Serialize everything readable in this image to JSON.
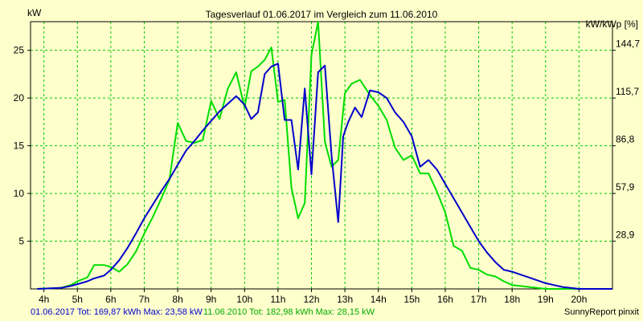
{
  "chart_data": {
    "type": "line",
    "title": "Tagesverlauf 01.06.2017 im Vergleich zum 11.06.2010",
    "ylabel_left": "kW",
    "ylabel_right": "kW/kWp [%]",
    "xlim": [
      3.6,
      21.0
    ],
    "ylim": [
      0,
      28
    ],
    "x_ticks": [
      4,
      5,
      6,
      7,
      8,
      9,
      10,
      11,
      12,
      13,
      14,
      15,
      16,
      17,
      18,
      19,
      20
    ],
    "x_tick_labels": [
      "4h",
      "5h",
      "6h",
      "7h",
      "8h",
      "9h",
      "10h",
      "11h",
      "12h",
      "13h",
      "14h",
      "15h",
      "16h",
      "17h",
      "18h",
      "19h",
      "20h"
    ],
    "y_ticks_left": [
      5,
      10,
      15,
      20,
      25
    ],
    "y_tick_labels_left": [
      "5",
      "10",
      "15",
      "20",
      "25"
    ],
    "y_ticks_right": [
      5,
      10,
      15,
      20,
      25
    ],
    "y_tick_labels_right": [
      "28,9",
      "57,9",
      "86,8",
      "115,7",
      "144,7"
    ],
    "grid": true,
    "series": [
      {
        "name": "01.06.2017",
        "color": "#0000cc",
        "x": [
          3.8,
          4.5,
          4.8,
          5.0,
          5.3,
          5.5,
          5.8,
          6.0,
          6.25,
          6.5,
          6.75,
          7.0,
          7.25,
          7.5,
          7.75,
          8.0,
          8.25,
          8.5,
          8.75,
          9.0,
          9.25,
          9.5,
          9.75,
          10.0,
          10.2,
          10.4,
          10.6,
          10.8,
          11.0,
          11.2,
          11.4,
          11.6,
          11.8,
          12.0,
          12.2,
          12.4,
          12.6,
          12.8,
          12.95,
          13.1,
          13.3,
          13.5,
          13.75,
          14.0,
          14.25,
          14.5,
          14.75,
          15.0,
          15.25,
          15.5,
          15.75,
          16.0,
          16.25,
          16.5,
          16.75,
          17.0,
          17.25,
          17.5,
          17.75,
          18.0,
          18.25,
          18.5,
          18.75,
          19.0,
          19.25,
          19.5,
          19.75,
          20.0,
          20.5,
          21.0
        ],
        "y": [
          0,
          0.1,
          0.3,
          0.5,
          0.8,
          1.1,
          1.4,
          2.0,
          3.0,
          4.3,
          5.8,
          7.4,
          8.8,
          10.2,
          11.5,
          13.0,
          14.5,
          15.5,
          16.6,
          17.6,
          18.6,
          19.4,
          20.2,
          19.3,
          17.8,
          18.5,
          22.5,
          23.3,
          23.6,
          17.7,
          17.7,
          12.5,
          21.0,
          12.0,
          22.7,
          23.4,
          14.0,
          7.0,
          16.0,
          17.5,
          19.0,
          18.0,
          20.8,
          20.6,
          20.0,
          18.5,
          17.5,
          16.0,
          12.8,
          13.5,
          12.5,
          11.0,
          9.5,
          8.0,
          6.5,
          5.0,
          3.8,
          2.8,
          2.0,
          1.8,
          1.5,
          1.2,
          0.9,
          0.6,
          0.4,
          0.2,
          0.1,
          0,
          0,
          0
        ]
      },
      {
        "name": "11.06.2010",
        "color": "#00dd00",
        "x": [
          3.8,
          4.5,
          4.8,
          5.0,
          5.3,
          5.5,
          5.8,
          6.0,
          6.25,
          6.5,
          6.75,
          7.0,
          7.25,
          7.5,
          7.75,
          8.0,
          8.25,
          8.5,
          8.75,
          9.0,
          9.25,
          9.5,
          9.75,
          10.0,
          10.2,
          10.4,
          10.6,
          10.8,
          11.0,
          11.2,
          11.4,
          11.6,
          11.8,
          12.0,
          12.2,
          12.4,
          12.6,
          12.8,
          13.0,
          13.2,
          13.45,
          13.75,
          14.0,
          14.25,
          14.5,
          14.75,
          15.0,
          15.25,
          15.5,
          15.75,
          16.0,
          16.25,
          16.5,
          16.75,
          17.0,
          17.25,
          17.5,
          17.75,
          18.0,
          18.25,
          18.5,
          18.75,
          19.0,
          19.25,
          19.5,
          19.75,
          20.0,
          20.5,
          21.0
        ],
        "y": [
          0,
          0.1,
          0.4,
          0.8,
          1.2,
          2.5,
          2.5,
          2.3,
          1.8,
          2.6,
          3.9,
          5.8,
          7.5,
          9.4,
          11.4,
          17.4,
          15.5,
          15.3,
          15.6,
          19.7,
          17.8,
          21.0,
          22.7,
          19.0,
          22.8,
          23.3,
          24.0,
          25.3,
          19.6,
          19.8,
          10.6,
          7.4,
          9.0,
          24.5,
          28.0,
          15.4,
          12.8,
          13.5,
          20.5,
          21.5,
          21.9,
          20.3,
          19.2,
          17.7,
          14.8,
          13.5,
          14.0,
          12.1,
          12.1,
          10.2,
          8.0,
          4.5,
          4.0,
          2.2,
          2.0,
          1.5,
          1.3,
          0.8,
          0.4,
          0.3,
          0.2,
          0.1,
          0,
          0,
          0,
          0,
          0,
          0,
          0
        ]
      }
    ]
  },
  "footer": {
    "series1_label": "01.06.2017 Tot: 169,87 kWh Max: 23,58 kW",
    "series2_label": "11.06.2010 Tot: 182,98 kWh Max: 28,15 kW",
    "credit": "SunnyReport pinxit"
  }
}
